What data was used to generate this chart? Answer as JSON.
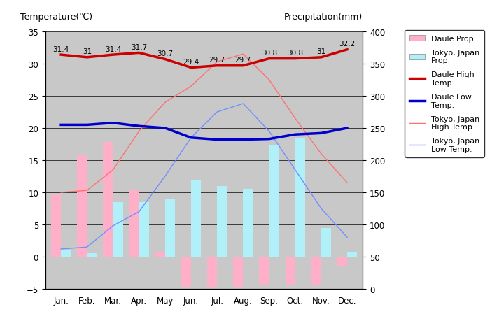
{
  "months": [
    "Jan.",
    "Feb.",
    "Mar.",
    "Apr.",
    "May",
    "Jun.",
    "Jul.",
    "Aug.",
    "Sep.",
    "Oct.",
    "Nov.",
    "Dec."
  ],
  "daule_high": [
    31.4,
    31.0,
    31.4,
    31.7,
    30.7,
    29.4,
    29.7,
    29.7,
    30.8,
    30.8,
    31.0,
    32.2
  ],
  "daule_low": [
    20.5,
    20.5,
    20.8,
    20.3,
    20.0,
    18.5,
    18.2,
    18.2,
    18.3,
    19.0,
    19.2,
    20.0
  ],
  "tokyo_high": [
    10.0,
    10.3,
    13.5,
    19.5,
    24.0,
    26.5,
    30.3,
    31.5,
    27.5,
    21.5,
    16.0,
    11.5
  ],
  "tokyo_low": [
    1.2,
    1.5,
    4.8,
    7.0,
    12.5,
    18.5,
    22.5,
    23.8,
    19.5,
    13.5,
    7.5,
    3.0
  ],
  "daule_precip_left": [
    9.7,
    15.8,
    17.8,
    10.4,
    0.7,
    -4.8,
    -4.8,
    -4.8,
    -4.5,
    -4.5,
    -4.5,
    -1.5
  ],
  "tokyo_precip_left": [
    1.0,
    0.5,
    8.5,
    8.5,
    9.0,
    11.8,
    11.0,
    10.5,
    17.3,
    18.5,
    4.5,
    0.8
  ],
  "annotations": [
    "31.4",
    "31",
    "31.4",
    "31.7",
    "30.7",
    "29.4",
    "29.7",
    "29.7",
    "30.8",
    "30.8",
    "31",
    "32.2"
  ],
  "ylim_left": [
    -5,
    35
  ],
  "ylim_right": [
    0,
    400
  ],
  "right_ticks": [
    0,
    50,
    100,
    150,
    200,
    250,
    300,
    350,
    400
  ],
  "left_ticks": [
    -5,
    0,
    5,
    10,
    15,
    20,
    25,
    30,
    35
  ],
  "bg_color": "#c8c8c8",
  "daule_bar_color": "#ffb0c8",
  "tokyo_bar_color": "#b0f0f8",
  "daule_high_color": "#cc0000",
  "daule_low_color": "#0000cc",
  "tokyo_high_color": "#ff7070",
  "tokyo_low_color": "#7090ff",
  "title_left": "Temperature(℃)",
  "title_right": "Precipitation(mm)",
  "bar_width": 0.38
}
